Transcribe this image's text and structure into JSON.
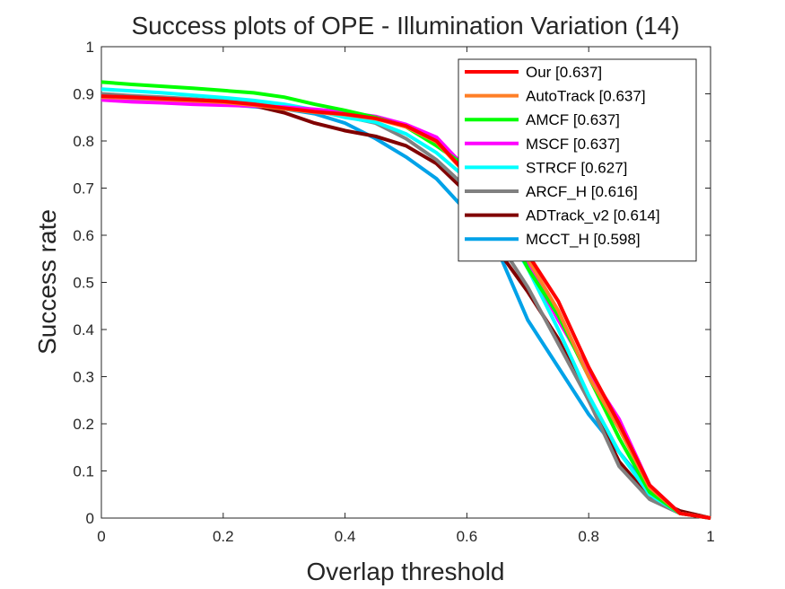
{
  "chart_data": {
    "type": "line",
    "title": "Success plots of OPE - Illumination Variation (14)",
    "xlabel": "Overlap threshold",
    "ylabel": "Success rate",
    "xlim": [
      0,
      1
    ],
    "ylim": [
      0,
      1
    ],
    "xticks": [
      "0",
      "0.2",
      "0.4",
      "0.6",
      "0.8",
      "1"
    ],
    "yticks": [
      "0",
      "0.1",
      "0.2",
      "0.3",
      "0.4",
      "0.5",
      "0.6",
      "0.7",
      "0.8",
      "0.9",
      "1"
    ],
    "grid": false,
    "legend_position": "top-right",
    "x": [
      0,
      0.05,
      0.1,
      0.15,
      0.2,
      0.25,
      0.3,
      0.35,
      0.4,
      0.45,
      0.5,
      0.55,
      0.6,
      0.65,
      0.7,
      0.75,
      0.8,
      0.85,
      0.9,
      0.95,
      1.0
    ],
    "series": [
      {
        "name": "Our [0.637]",
        "color": "#ff0000",
        "values": [
          0.895,
          0.893,
          0.89,
          0.887,
          0.884,
          0.878,
          0.87,
          0.862,
          0.857,
          0.848,
          0.832,
          0.8,
          0.73,
          0.64,
          0.56,
          0.46,
          0.32,
          0.2,
          0.07,
          0.01,
          0.0
        ]
      },
      {
        "name": "AutoTrack [0.637]",
        "color": "#ff7f27",
        "values": [
          0.893,
          0.891,
          0.888,
          0.885,
          0.882,
          0.876,
          0.868,
          0.861,
          0.856,
          0.847,
          0.83,
          0.798,
          0.728,
          0.638,
          0.55,
          0.44,
          0.3,
          0.19,
          0.065,
          0.01,
          0.0
        ]
      },
      {
        "name": "AMCF [0.637]",
        "color": "#00ff00",
        "values": [
          0.925,
          0.92,
          0.916,
          0.912,
          0.907,
          0.902,
          0.893,
          0.878,
          0.865,
          0.85,
          0.83,
          0.79,
          0.745,
          0.66,
          0.53,
          0.43,
          0.3,
          0.17,
          0.055,
          0.01,
          0.0
        ]
      },
      {
        "name": "MSCF [0.637]",
        "color": "#ff00ff",
        "values": [
          0.887,
          0.883,
          0.881,
          0.878,
          0.876,
          0.874,
          0.872,
          0.867,
          0.861,
          0.852,
          0.835,
          0.808,
          0.74,
          0.63,
          0.54,
          0.42,
          0.31,
          0.21,
          0.07,
          0.01,
          0.0
        ]
      },
      {
        "name": "STRCF [0.627]",
        "color": "#00ffff",
        "values": [
          0.91,
          0.906,
          0.902,
          0.897,
          0.892,
          0.886,
          0.878,
          0.866,
          0.85,
          0.84,
          0.815,
          0.775,
          0.72,
          0.635,
          0.53,
          0.4,
          0.26,
          0.14,
          0.05,
          0.01,
          0.0
        ]
      },
      {
        "name": "ARCF_H [0.616]",
        "color": "#808080",
        "values": [
          0.9,
          0.896,
          0.893,
          0.889,
          0.885,
          0.879,
          0.872,
          0.864,
          0.852,
          0.838,
          0.805,
          0.76,
          0.7,
          0.59,
          0.49,
          0.37,
          0.25,
          0.11,
          0.04,
          0.01,
          0.0
        ]
      },
      {
        "name": "ADTrack_v2 [0.614]",
        "color": "#800000",
        "values": [
          0.898,
          0.893,
          0.889,
          0.885,
          0.88,
          0.875,
          0.86,
          0.838,
          0.822,
          0.81,
          0.79,
          0.752,
          0.69,
          0.57,
          0.48,
          0.38,
          0.25,
          0.12,
          0.045,
          0.015,
          0.0
        ]
      },
      {
        "name": "MCCT_H [0.598]",
        "color": "#00a2e8",
        "values": [
          0.893,
          0.89,
          0.886,
          0.882,
          0.878,
          0.873,
          0.868,
          0.858,
          0.838,
          0.805,
          0.766,
          0.72,
          0.65,
          0.57,
          0.42,
          0.32,
          0.22,
          0.14,
          0.06,
          0.01,
          0.0
        ]
      }
    ]
  }
}
